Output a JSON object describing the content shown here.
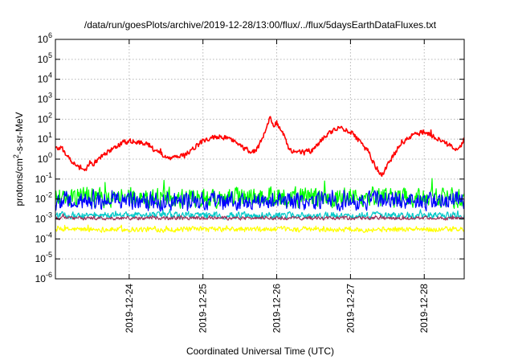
{
  "chart_data": {
    "type": "line",
    "title": "/data/run/goesPlots/archive/2019-12-28/13:00/flux/../flux/5daysEarthDataFluxes.txt",
    "xlabel": "Coordinated Universal Time (UTC)",
    "ylabel": {
      "base": "protons/cm",
      "sup": "2",
      "rest": "-s-sr-MeV"
    },
    "y_scale": "log",
    "ylim": [
      1e-06,
      1000000.0
    ],
    "xlim": [
      "2019-12-23T00:00",
      "2019-12-28T13:00"
    ],
    "grid": true,
    "legend": "none",
    "x_ticks": [
      {
        "label": "2019-12-24",
        "value": "2019-12-24T00:00"
      },
      {
        "label": "2019-12-25",
        "value": "2019-12-25T00:00"
      },
      {
        "label": "2019-12-26",
        "value": "2019-12-26T00:00"
      },
      {
        "label": "2019-12-27",
        "value": "2019-12-27T00:00"
      },
      {
        "label": "2019-12-28",
        "value": "2019-12-28T00:00"
      }
    ],
    "y_ticks": [
      {
        "base": "10",
        "exp": "-6"
      },
      {
        "base": "10",
        "exp": "-5"
      },
      {
        "base": "10",
        "exp": "-4"
      },
      {
        "base": "10",
        "exp": "-3"
      },
      {
        "base": "10",
        "exp": "-2"
      },
      {
        "base": "10",
        "exp": "-1"
      },
      {
        "base": "10",
        "exp": "0"
      },
      {
        "base": "10",
        "exp": "1"
      },
      {
        "base": "10",
        "exp": "2"
      },
      {
        "base": "10",
        "exp": "3"
      },
      {
        "base": "10",
        "exp": "4"
      },
      {
        "base": "10",
        "exp": "5"
      },
      {
        "base": "10",
        "exp": "6"
      }
    ],
    "series": [
      {
        "color": "#ffff00",
        "noise_decades": 0.12,
        "x": [
          "2019-12-23T00:00",
          "2019-12-24T00:00",
          "2019-12-25T00:00",
          "2019-12-26T00:00",
          "2019-12-27T00:00",
          "2019-12-28T00:00",
          "2019-12-28T13:00"
        ],
        "y": [
          0.0003,
          0.0003,
          0.0003,
          0.0003,
          0.0003,
          0.0003,
          0.0003
        ]
      },
      {
        "color": "#00c8c8",
        "noise_decades": 0.15,
        "x": [
          "2019-12-23T00:00",
          "2019-12-24T00:00",
          "2019-12-25T00:00",
          "2019-12-26T00:00",
          "2019-12-27T00:00",
          "2019-12-28T00:00",
          "2019-12-28T13:00"
        ],
        "y": [
          0.0015,
          0.0015,
          0.0015,
          0.0015,
          0.0015,
          0.0015,
          0.0015
        ]
      },
      {
        "color": "#00ff00",
        "noise_decades": 0.45,
        "x": [
          "2019-12-23T00:00",
          "2019-12-24T00:00",
          "2019-12-25T00:00",
          "2019-12-26T00:00",
          "2019-12-27T00:00",
          "2019-12-28T00:00",
          "2019-12-28T13:00"
        ],
        "y": [
          0.012,
          0.012,
          0.012,
          0.012,
          0.012,
          0.012,
          0.012
        ]
      },
      {
        "color": "#0000ff",
        "noise_decades": 0.4,
        "x": [
          "2019-12-23T00:00",
          "2019-12-24T00:00",
          "2019-12-25T00:00",
          "2019-12-26T00:00",
          "2019-12-27T00:00",
          "2019-12-28T00:00",
          "2019-12-28T13:00"
        ],
        "y": [
          0.008,
          0.008,
          0.008,
          0.008,
          0.008,
          0.008,
          0.008
        ]
      },
      {
        "color": "#a0325a",
        "noise_decades": 0.08,
        "x": [
          "2019-12-23T00:00",
          "2019-12-24T00:00",
          "2019-12-25T00:00",
          "2019-12-26T00:00",
          "2019-12-27T00:00",
          "2019-12-28T00:00",
          "2019-12-28T13:00"
        ],
        "y": [
          0.0011,
          0.0011,
          0.0011,
          0.0011,
          0.0011,
          0.0011,
          0.0011
        ]
      },
      {
        "color": "#ff0000",
        "noise_decades": 0.12,
        "x": [
          "2019-12-23T00:00",
          "2019-12-23T02:00",
          "2019-12-23T04:00",
          "2019-12-23T06:00",
          "2019-12-23T08:00",
          "2019-12-23T10:00",
          "2019-12-23T14:00",
          "2019-12-23T18:00",
          "2019-12-23T22:00",
          "2019-12-24T02:00",
          "2019-12-24T06:00",
          "2019-12-24T10:00",
          "2019-12-24T14:00",
          "2019-12-24T18:00",
          "2019-12-24T22:00",
          "2019-12-25T02:00",
          "2019-12-25T06:00",
          "2019-12-25T10:00",
          "2019-12-25T12:00",
          "2019-12-25T14:00",
          "2019-12-25T16:00",
          "2019-12-25T18:00",
          "2019-12-25T19:00",
          "2019-12-25T20:00",
          "2019-12-25T21:00",
          "2019-12-25T22:00",
          "2019-12-25T23:00",
          "2019-12-26T00:00",
          "2019-12-26T02:00",
          "2019-12-26T04:00",
          "2019-12-26T08:00",
          "2019-12-26T12:00",
          "2019-12-26T16:00",
          "2019-12-26T20:00",
          "2019-12-27T00:00",
          "2019-12-27T03:00",
          "2019-12-27T06:00",
          "2019-12-27T08:00",
          "2019-12-27T10:00",
          "2019-12-27T12:00",
          "2019-12-27T16:00",
          "2019-12-27T20:00",
          "2019-12-28T00:00",
          "2019-12-28T04:00",
          "2019-12-28T08:00",
          "2019-12-28T10:00",
          "2019-12-28T12:00",
          "2019-12-28T13:00"
        ],
        "y": [
          4,
          3,
          1.5,
          0.6,
          0.3,
          0.35,
          1,
          3,
          7,
          8,
          5,
          2,
          1.2,
          1.5,
          5,
          12,
          14,
          8,
          5,
          3,
          2,
          4,
          8,
          20,
          60,
          110,
          40,
          70,
          20,
          3,
          2,
          3,
          15,
          35,
          25,
          8,
          2,
          0.5,
          0.15,
          0.5,
          5,
          15,
          25,
          12,
          5,
          3,
          5,
          10
        ]
      }
    ]
  }
}
